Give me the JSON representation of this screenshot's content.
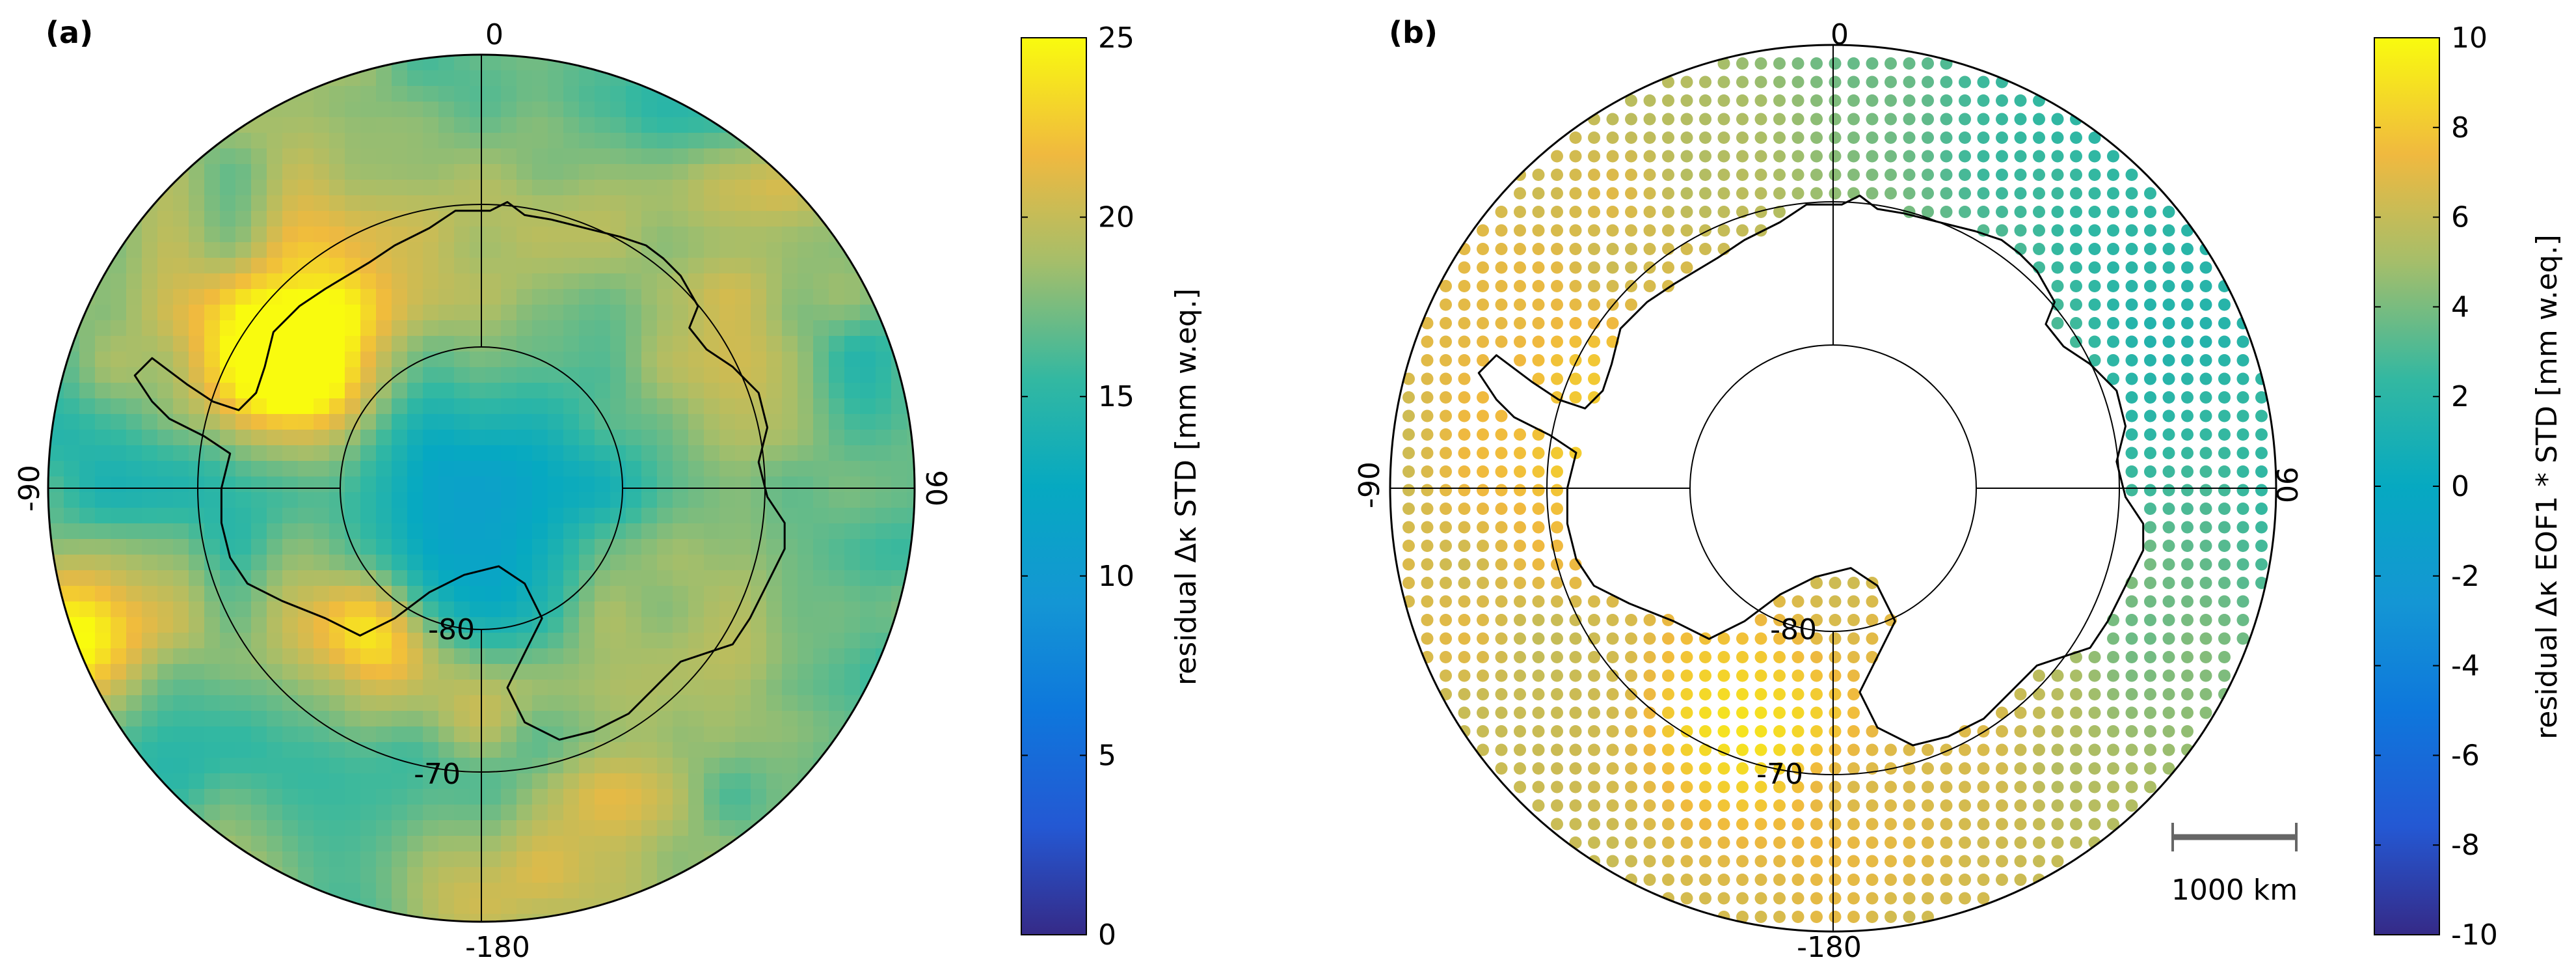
{
  "panels": [
    {
      "id": "a",
      "label": "(a)",
      "label_bold": true,
      "lat_labels": [
        "-80",
        "-70"
      ],
      "lon_labels": {
        "top": "0",
        "left": "-90",
        "right": "90",
        "bottom": "-180"
      },
      "render": "smooth-field",
      "colorbar": {
        "label": "residual Δκ STD [mm w.eq.]",
        "ticks": [
          "0",
          "5",
          "10",
          "15",
          "20",
          "25"
        ],
        "min": 0,
        "max": 25
      }
    },
    {
      "id": "b",
      "label": "(b)",
      "label_bold": true,
      "lat_labels": [
        "-80",
        "-70"
      ],
      "lon_labels": {
        "top": "0",
        "left": "-90",
        "right": "90",
        "bottom": "-180"
      },
      "render": "dots",
      "scale_bar": "1000 km",
      "colorbar": {
        "label": "residual Δκ EOF1 * STD [mm w.eq.]",
        "ticks": [
          "-10",
          "-8",
          "-6",
          "-4",
          "-2",
          "0",
          "2",
          "4",
          "6",
          "8",
          "10"
        ],
        "min": -10,
        "max": 10
      }
    }
  ],
  "colormap": "parula",
  "colors": {
    "coastline": "#000000",
    "grid": "#000000",
    "scale_bar": "#666666"
  }
}
